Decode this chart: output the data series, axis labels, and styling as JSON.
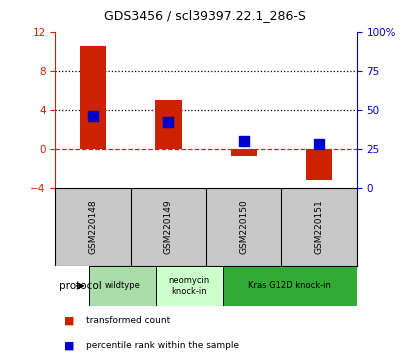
{
  "title": "GDS3456 / scl39397.22.1_286-S",
  "samples": [
    "GSM220148",
    "GSM220149",
    "GSM220150",
    "GSM220151"
  ],
  "red_values": [
    10.5,
    5.0,
    -0.8,
    -3.2
  ],
  "blue_values_pct": [
    46,
    42,
    30,
    28
  ],
  "ylim_left": [
    -4,
    12
  ],
  "ylim_right": [
    0,
    100
  ],
  "yticks_left": [
    -4,
    0,
    4,
    8,
    12
  ],
  "yticks_right": [
    0,
    25,
    50,
    75,
    100
  ],
  "hlines": [
    4,
    8
  ],
  "zero_line": 0,
  "protocol_labels": [
    {
      "text": "wildtype",
      "start": 0,
      "end": 1
    },
    {
      "text": "neomycin\nknock-in",
      "start": 1,
      "end": 2
    },
    {
      "text": "Kras G12D knock-in",
      "start": 2,
      "end": 4
    }
  ],
  "protocol_colors": [
    "#aaddaa",
    "#ccffcc",
    "#33aa33"
  ],
  "bar_color": "#cc2200",
  "dot_color": "#0000cc",
  "bar_width": 0.35,
  "dot_size": 55,
  "legend_red": "transformed count",
  "legend_blue": "percentile rank within the sample",
  "protocol_text": "protocol",
  "left_axis_color": "#cc2200",
  "right_axis_color": "#0000cc",
  "sample_box_color": "#c8c8c8"
}
